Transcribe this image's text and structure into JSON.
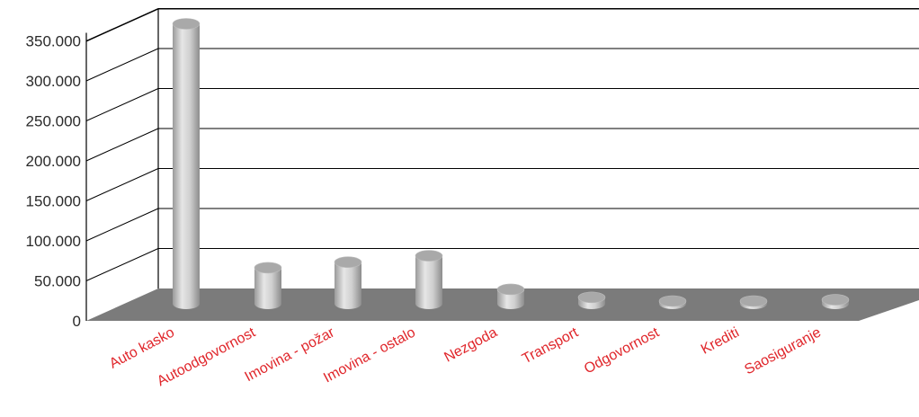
{
  "chart_data": {
    "type": "bar",
    "style": "3d-cylinder",
    "categories": [
      "Auto kasko",
      "Autoodgovornost",
      "Imovina - požar",
      "Imovina - ostalo",
      "Nezgoda",
      "Transport",
      "Odgovornost",
      "Krediti",
      "Saosiguranje"
    ],
    "values": [
      350000,
      45000,
      52000,
      60000,
      18000,
      8000,
      2000,
      3000,
      5000
    ],
    "y_ticks": [
      "0",
      "50.000",
      "100.000",
      "150.000",
      "200.000",
      "250.000",
      "300.000",
      "350.000"
    ],
    "ylim": [
      0,
      350000
    ],
    "grid": true,
    "colors": {
      "bar": "#c2c2c2",
      "floor": "#7b7b7b",
      "category_label": "#e0262b"
    }
  }
}
